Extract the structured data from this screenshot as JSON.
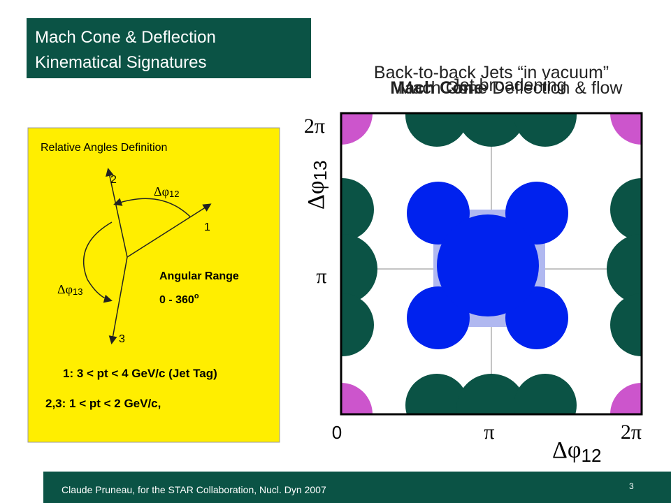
{
  "title": {
    "lines": [
      "Mach Cone & Deflection",
      "Kinematical Signatures"
    ]
  },
  "panel": {
    "heading": "Relative Angles Definition",
    "labels": {
      "axis1": "1",
      "axis2": "2",
      "axis3": "3"
    },
    "angle12": {
      "symbol": "Δφ",
      "sub": "12"
    },
    "angle13": {
      "symbol": "Δφ",
      "sub": "13"
    },
    "range_title": "Angular Range",
    "range_value": "0 - 360",
    "range_unit": "o",
    "cut1": "1:  3 < pt < 4 GeV/c (Jet Tag)",
    "cut23": "2,3: 1 < pt < 2 GeV/c,"
  },
  "plot": {
    "titles": [
      "Back-to-back Jets “in vacuum”",
      "Jet broadening",
      "Mach Cone",
      "Mach Cone Deflection & flow"
    ],
    "y_ticks": [
      "2π",
      "π"
    ],
    "x_ticks": [
      "0",
      "π",
      "2π"
    ],
    "y_label": {
      "symbol": "Δφ",
      "sub": "13"
    },
    "x_label": {
      "symbol": "Δφ",
      "sub": "12"
    }
  },
  "footer": {
    "credit": "Claude Pruneau, for the STAR Collaboration, Nucl. Dyn 2007",
    "page": "3"
  }
}
